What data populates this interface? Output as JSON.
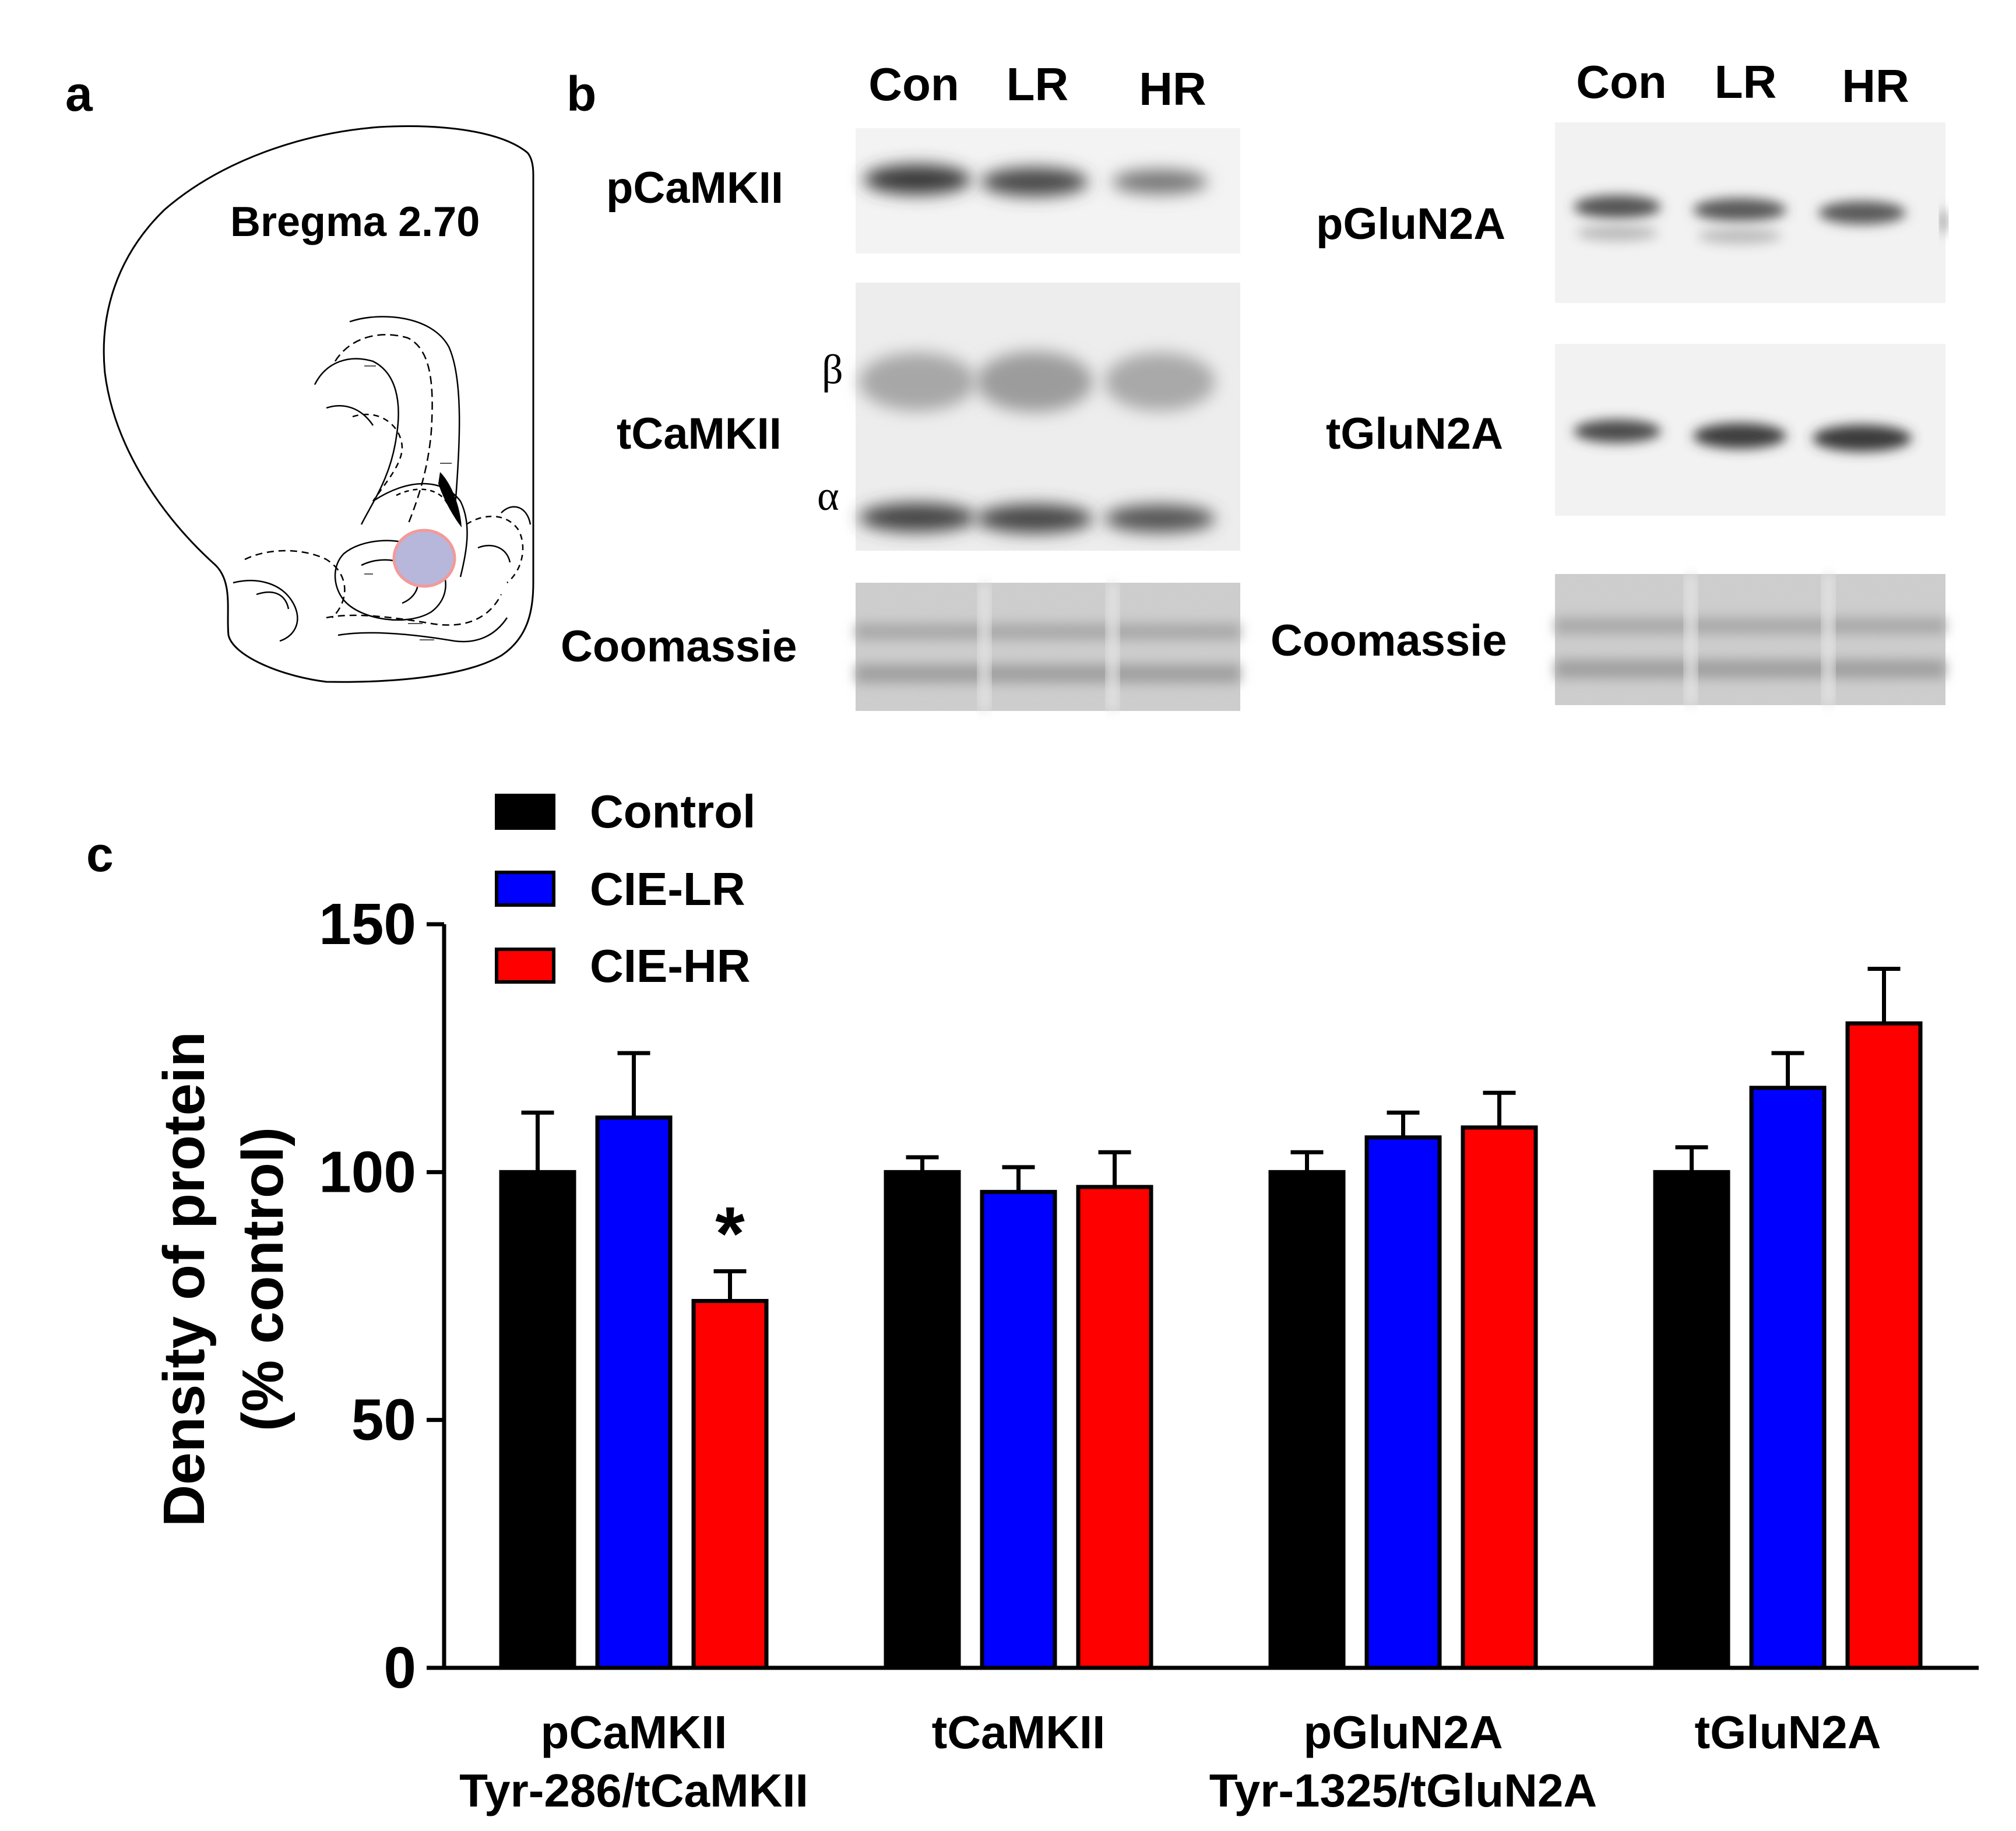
{
  "panel_a": {
    "label": "a",
    "bregma_label": "Bregma 2.70"
  },
  "panel_b": {
    "label": "b",
    "left_blot": {
      "lanes": [
        "Con",
        "LR",
        "HR"
      ],
      "rows": {
        "phospho": "pCaMKII",
        "total": "tCaMKII",
        "loading": "Coomassie"
      },
      "beta_symbol": "β",
      "alpha_symbol": "α"
    },
    "right_blot": {
      "lanes": [
        "Con",
        "LR",
        "HR"
      ],
      "rows": {
        "phospho": "pGluN2A",
        "total": "tGluN2A",
        "loading": "Coomassie"
      }
    }
  },
  "panel_c": {
    "label": "c",
    "significance_marker": "*"
  },
  "colors": {
    "Control": "#000000",
    "CIE-LR": "#0000ff",
    "CIE-HR": "#ff0000",
    "roi_fill": "#b7b7dc",
    "roi_stroke": "#f29a9a"
  },
  "chart_data": {
    "type": "bar",
    "title": "",
    "xlabel": "",
    "ylabel_line1": "Density of protein",
    "ylabel_line2": "(% control)",
    "ylim": [
      0,
      150
    ],
    "yticks": [
      0,
      50,
      100,
      150
    ],
    "categories": [
      {
        "line1": "pCaMKII",
        "line2": "Tyr-286/tCaMKII"
      },
      {
        "line1": "tCaMKII",
        "line2": ""
      },
      {
        "line1": "pGluN2A",
        "line2": "Tyr-1325/tGluN2A"
      },
      {
        "line1": "tGluN2A",
        "line2": ""
      }
    ],
    "legend_position": "top-left",
    "series": [
      {
        "name": "Control",
        "values": [
          100,
          100,
          100,
          100
        ],
        "errors": [
          12,
          3,
          4,
          5
        ]
      },
      {
        "name": "CIE-LR",
        "values": [
          111,
          96,
          107,
          117
        ],
        "errors": [
          13,
          5,
          5,
          7
        ]
      },
      {
        "name": "CIE-HR",
        "values": [
          74,
          97,
          109,
          130
        ],
        "errors": [
          6,
          7,
          7,
          11
        ]
      }
    ],
    "annotations": [
      {
        "text": "*",
        "category_index": 0,
        "series_index": 2
      }
    ]
  }
}
